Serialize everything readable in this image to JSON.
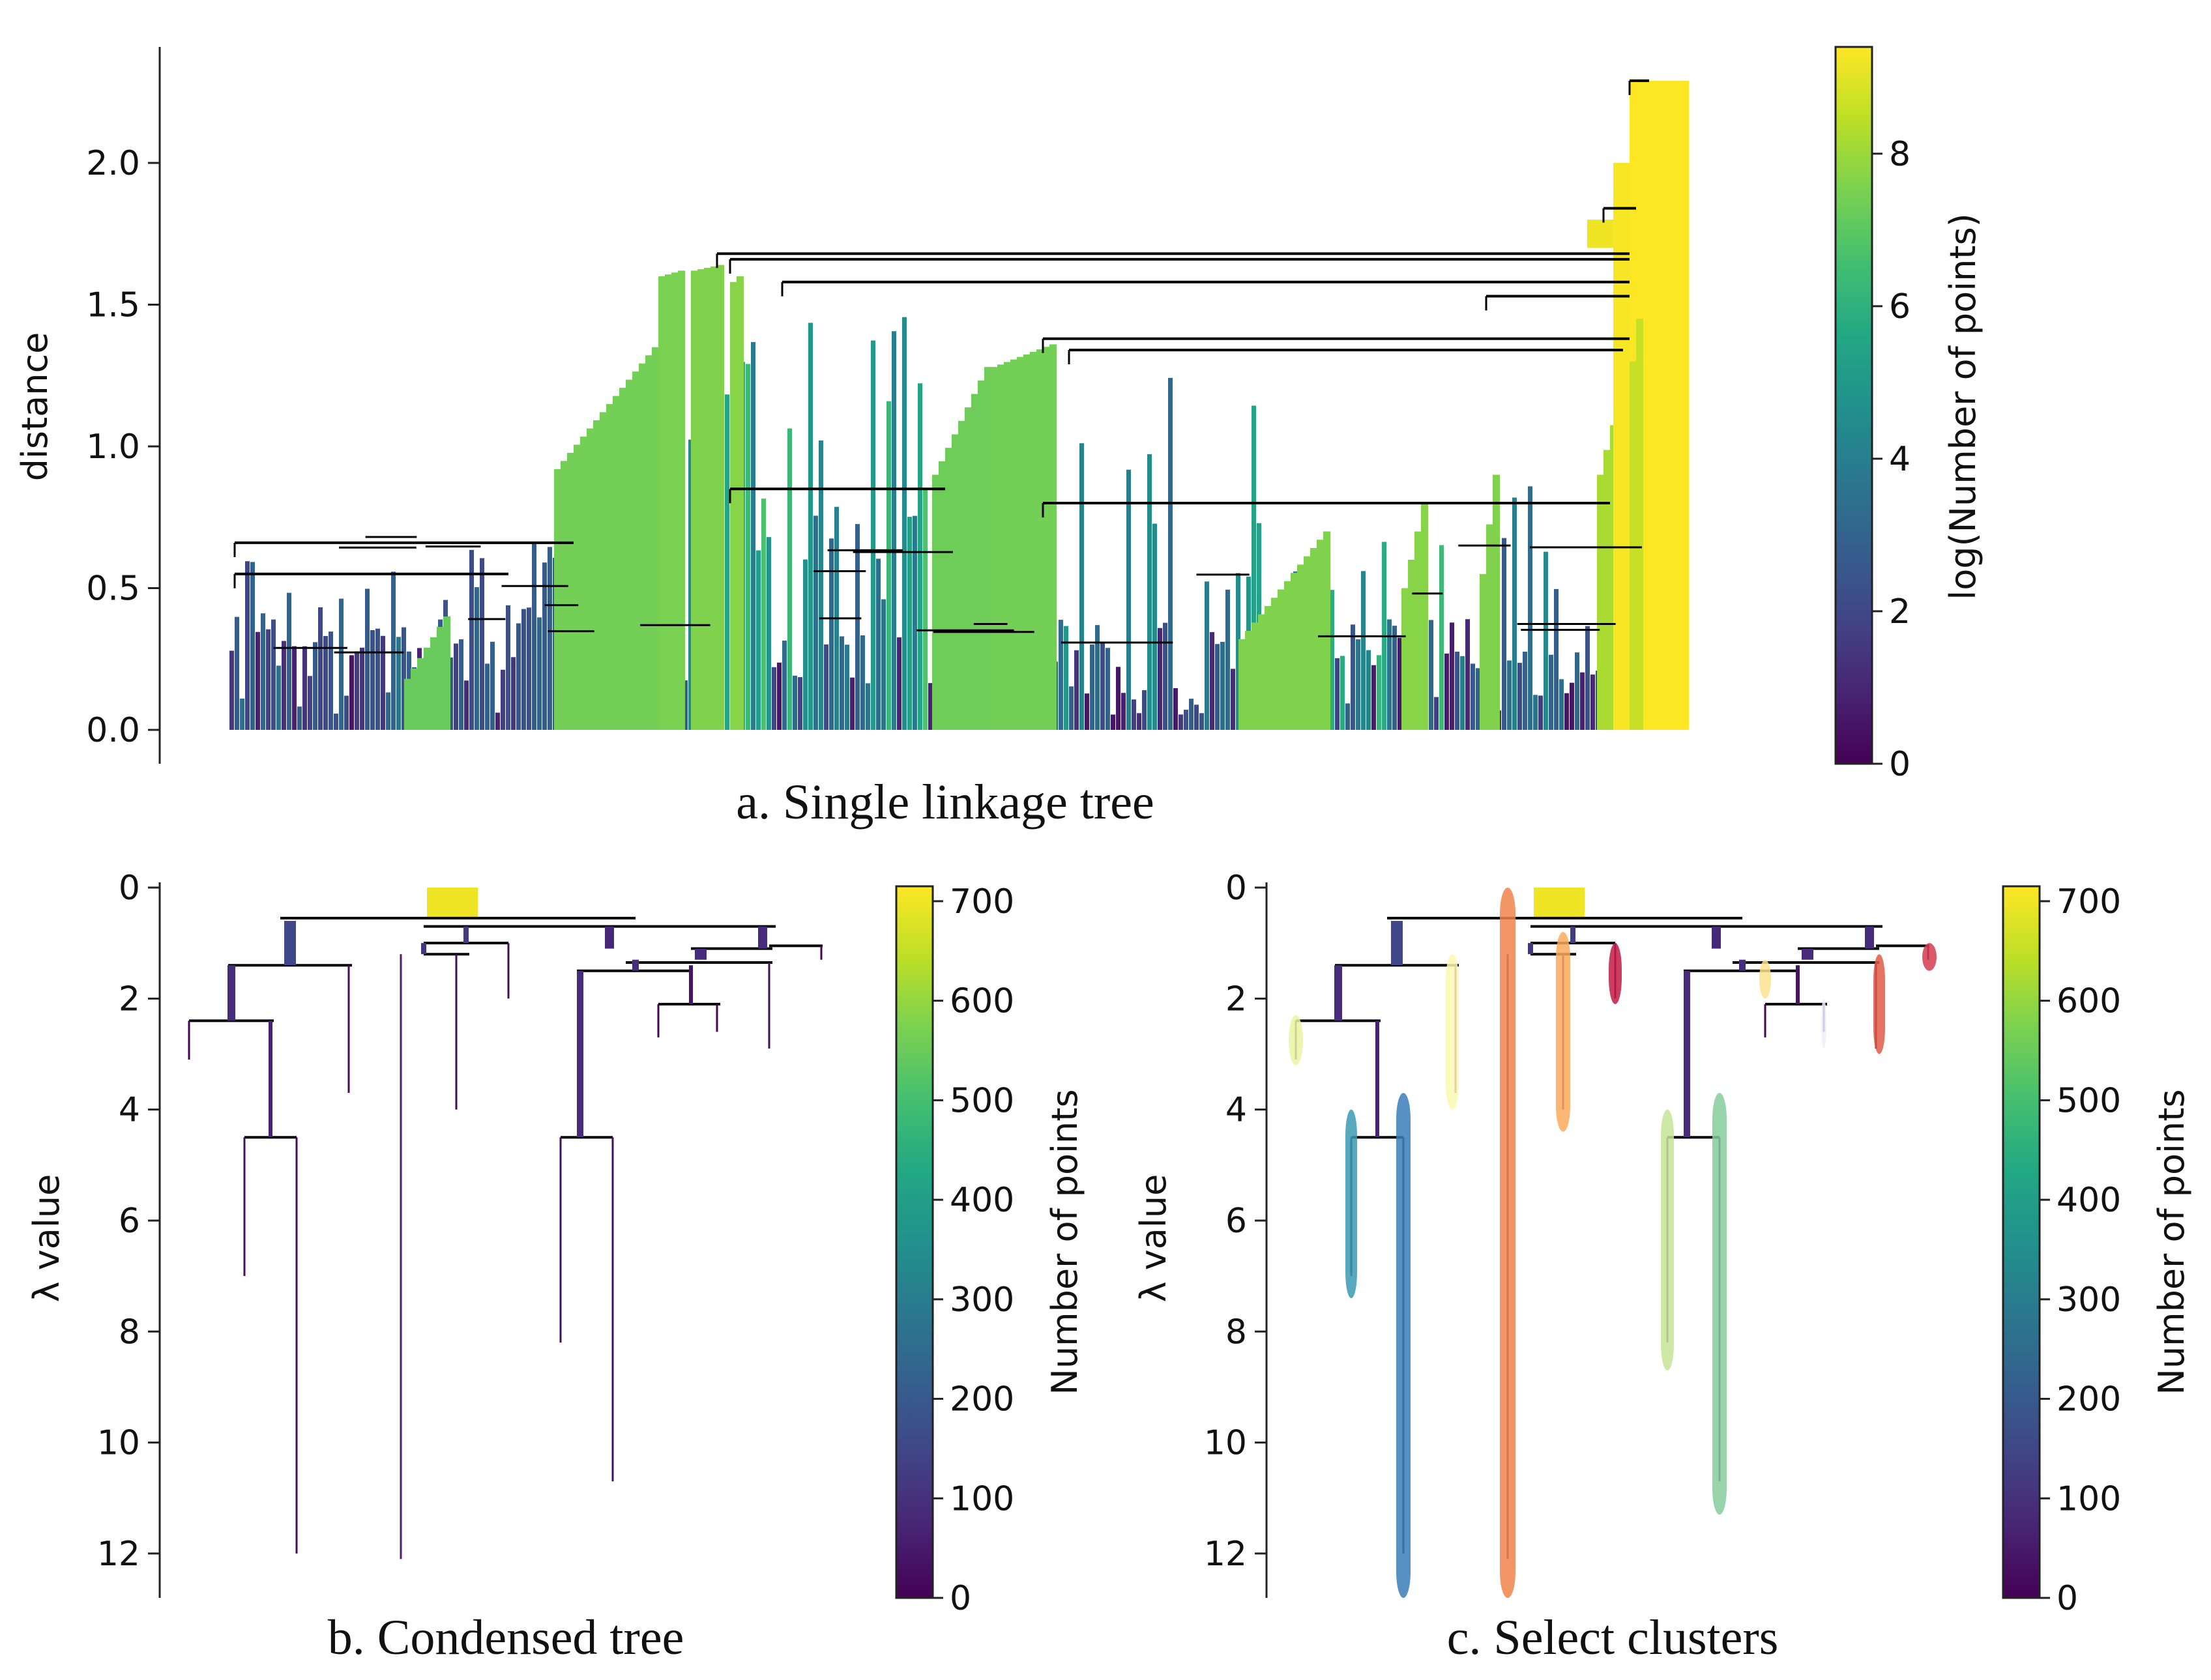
{
  "figure": {
    "captions": [
      "a. Single linkage tree",
      "b. Condensed tree",
      "c. Select clusters"
    ]
  },
  "chart_data": [
    {
      "type": "dendrogram",
      "title": "a. Single linkage tree",
      "ylabel": "distance",
      "yticks": [
        "0.0",
        "0.5",
        "1.0",
        "1.5",
        "2.0"
      ],
      "ylim": [
        -0.12,
        2.42
      ],
      "top_merge_distance": 2.29,
      "major_merges": [
        {
          "distance": 2.29,
          "size_log": 9.4
        },
        {
          "distance": 1.84,
          "size_log": 8.6
        },
        {
          "distance": 1.68,
          "size_log": 8.3
        },
        {
          "distance": 1.66,
          "size_log": 7.6
        },
        {
          "distance": 1.58,
          "size_log": 7.8
        },
        {
          "distance": 1.53,
          "size_log": 7.9
        },
        {
          "distance": 1.38,
          "size_log": 7.5
        },
        {
          "distance": 1.34,
          "size_log": 7.4
        },
        {
          "distance": 0.85,
          "size_log": 6.9
        },
        {
          "distance": 0.8,
          "size_log": 7.2
        },
        {
          "distance": 0.66,
          "size_log": 6.5
        },
        {
          "distance": 0.55,
          "size_log": 6.3
        }
      ],
      "colorbar": {
        "label": "log(Number of points)",
        "ticks": [
          "0",
          "2",
          "4",
          "6",
          "8"
        ],
        "range": [
          0,
          9.4
        ],
        "colormap": "viridis"
      }
    },
    {
      "type": "condensed_tree",
      "title": "b. Condensed tree",
      "ylabel": "λ value",
      "yticks": [
        "0",
        "2",
        "4",
        "6",
        "8",
        "10",
        "12"
      ],
      "ylim": [
        0,
        12.8
      ],
      "splits": [
        {
          "lambda": 0.6,
          "size": 700
        },
        {
          "lambda": 1.4,
          "size": 150
        },
        {
          "lambda": 2.4,
          "size": 90
        },
        {
          "lambda": 4.5,
          "size": 70
        },
        {
          "lambda": 1.2,
          "size": 110
        },
        {
          "lambda": 1.5,
          "size": 100
        },
        {
          "lambda": 4.5,
          "size": 80
        },
        {
          "lambda": 2.1,
          "size": 30
        },
        {
          "lambda": 1.1,
          "size": 20
        }
      ],
      "colorbar": {
        "label": "Number of points",
        "ticks": [
          "0",
          "100",
          "200",
          "300",
          "400",
          "500",
          "600",
          "700"
        ],
        "range": [
          0,
          715
        ],
        "colormap": "viridis"
      }
    },
    {
      "type": "condensed_tree",
      "title": "c. Select clusters",
      "ylabel": "λ value",
      "yticks": [
        "0",
        "2",
        "4",
        "6",
        "8",
        "10",
        "12"
      ],
      "ylim": [
        0,
        12.8
      ],
      "selected_clusters": [
        {
          "lambda_start": 2.3,
          "lambda_end": 3.2,
          "color": "#e9f5a0"
        },
        {
          "lambda_start": 4.0,
          "lambda_end": 7.4,
          "color": "#3a9ab2"
        },
        {
          "lambda_start": 3.7,
          "lambda_end": 12.8,
          "color": "#3a7db8"
        },
        {
          "lambda_start": 1.2,
          "lambda_end": 4.0,
          "color": "#fbf8b0"
        },
        {
          "lambda_start": 0.0,
          "lambda_end": 12.8,
          "color": "#f1844b"
        },
        {
          "lambda_start": 0.8,
          "lambda_end": 4.4,
          "color": "#fbaa5c"
        },
        {
          "lambda_start": 1.0,
          "lambda_end": 2.1,
          "color": "#c21a43"
        },
        {
          "lambda_start": 1.3,
          "lambda_end": 2.0,
          "color": "#fde28c"
        },
        {
          "lambda_start": 2.0,
          "lambda_end": 2.9,
          "color": "#eeeef8"
        },
        {
          "lambda_start": 1.2,
          "lambda_end": 3.0,
          "color": "#e05a45"
        },
        {
          "lambda_start": 1.0,
          "lambda_end": 1.5,
          "color": "#d33c4d"
        },
        {
          "lambda_start": 4.0,
          "lambda_end": 8.7,
          "color": "#c6e597"
        },
        {
          "lambda_start": 3.7,
          "lambda_end": 11.3,
          "color": "#86cc9b"
        }
      ],
      "colorbar": {
        "label": "Number of points",
        "ticks": [
          "0",
          "100",
          "200",
          "300",
          "400",
          "500",
          "600",
          "700"
        ],
        "range": [
          0,
          715
        ],
        "colormap": "viridis"
      }
    }
  ]
}
